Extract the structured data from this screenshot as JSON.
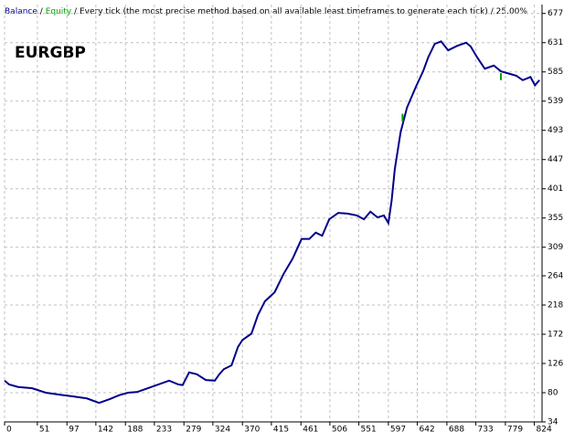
{
  "chart_data": {
    "type": "line",
    "title": "EURGBP",
    "separator": "/",
    "subtitle": "Every tick (the most precise method based on all available least timeframes to generate each tick)",
    "annotation": "25.00%",
    "xlim": [
      0,
      836
    ],
    "ylim": [
      34,
      691
    ],
    "xticks": [
      0,
      51,
      97,
      142,
      188,
      233,
      279,
      324,
      370,
      415,
      461,
      506,
      551,
      597,
      642,
      688,
      733,
      779,
      824
    ],
    "yticks": [
      34,
      80,
      126,
      172,
      218,
      264,
      309,
      355,
      401,
      447,
      493,
      539,
      585,
      631,
      677
    ],
    "grid": true,
    "series": [
      {
        "name": "Balance",
        "color": "#00008b",
        "x": [
          0,
          7,
          21,
          43,
          64,
          85,
          107,
          128,
          147,
          164,
          178,
          192,
          206,
          220,
          242,
          256,
          270,
          277,
          287,
          299,
          313,
          327,
          334,
          341,
          353,
          363,
          370,
          384,
          394,
          405,
          420,
          434,
          448,
          462,
          474,
          484,
          494,
          505,
          519,
          533,
          548,
          559,
          569,
          580,
          590,
          597,
          602,
          607,
          616,
          626,
          640,
          651,
          659,
          669,
          679,
          690,
          704,
          718,
          725,
          735,
          747,
          761,
          772,
          782,
          796,
          806,
          818,
          825,
          832
        ],
        "values": [
          99,
          93,
          89,
          87,
          80,
          77,
          74,
          71,
          64,
          70,
          76,
          80,
          81,
          86,
          94,
          99,
          93,
          92,
          112,
          109,
          100,
          99,
          109,
          117,
          123,
          152,
          163,
          173,
          202,
          224,
          238,
          267,
          291,
          322,
          322,
          332,
          327,
          353,
          363,
          362,
          359,
          353,
          365,
          356,
          359,
          347,
          382,
          432,
          490,
          529,
          562,
          586,
          608,
          629,
          633,
          619,
          626,
          631,
          625,
          608,
          590,
          595,
          586,
          583,
          579,
          572,
          577,
          564,
          572
        ]
      },
      {
        "name": "Equity",
        "color": "#00a000",
        "x": [
          619,
          619,
          700,
          772,
          772
        ],
        "values": [
          519,
          507,
          null,
          583,
          572
        ]
      }
    ]
  }
}
